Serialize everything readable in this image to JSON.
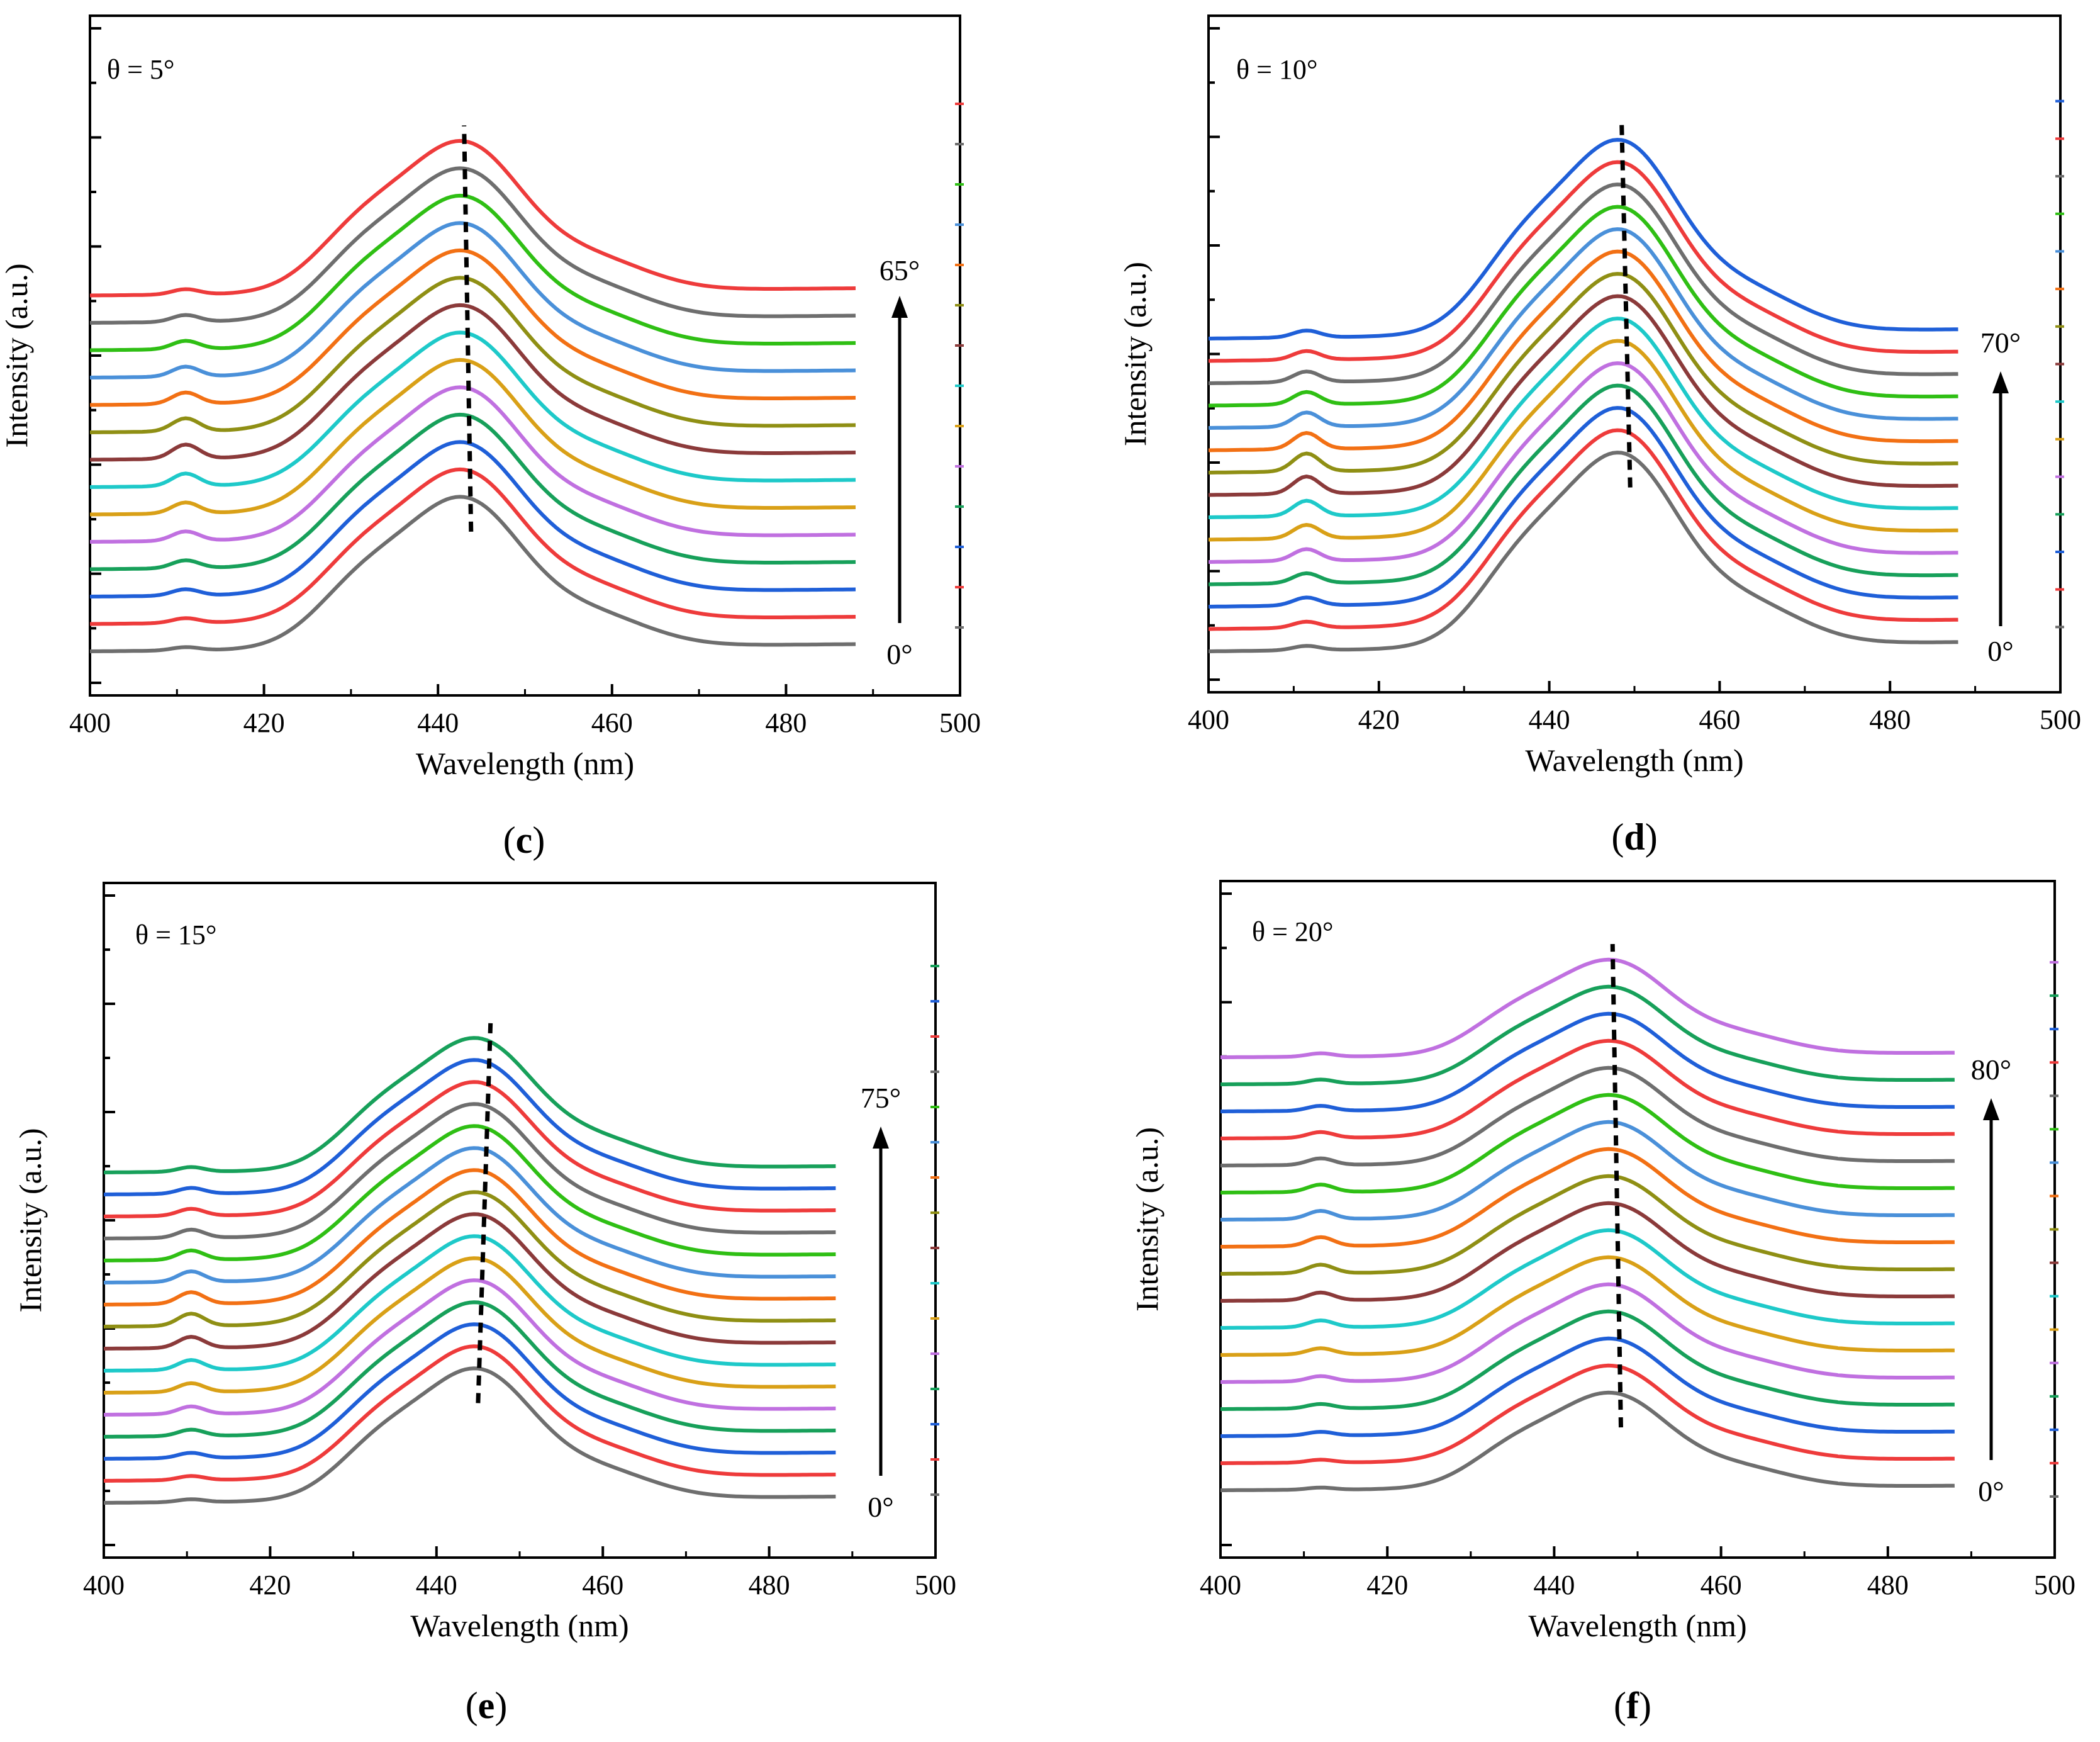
{
  "chart_data": [
    {
      "type": "line",
      "panel": "c",
      "caption": {
        "open": "(",
        "letter": "c",
        "close": ")"
      },
      "title": "θ = 5°",
      "xlabel": "Wavelength (nm)",
      "ylabel": "Intensity (a.u.)",
      "xlim": [
        400,
        500
      ],
      "xticks": [
        "400",
        "420",
        "440",
        "460",
        "480",
        "500"
      ],
      "x_data_range": [
        400,
        488
      ],
      "y_ticks": "unlabeled",
      "angle_range": {
        "start": "0°",
        "end": "65°",
        "direction": "bottom-to-top"
      },
      "series_count": 14,
      "series_colors": [
        "#6e6e6e",
        "#ee3b3b",
        "#1f5fd8",
        "#17a05a",
        "#c070e0",
        "#d9a017",
        "#1ec9c9",
        "#8b3a3a",
        "#8f8f14",
        "#f27014",
        "#4a90d9",
        "#2fbf14",
        "#6e6e6e",
        "#ee3b3b"
      ],
      "peak_wavelength_nm": 443,
      "peak_trend_line": {
        "from": [
          443.8,
          "bottom"
        ],
        "to": [
          443.0,
          "top"
        ],
        "style": "dashed"
      },
      "secondary_peak_nm": 411,
      "note": "Stacked emission spectra; each curve offset vertically; peak near 443 nm"
    },
    {
      "type": "line",
      "panel": "d",
      "caption": {
        "open": "(",
        "letter": "d",
        "close": ")"
      },
      "title": "θ = 10°",
      "xlabel": "Wavelength (nm)",
      "ylabel": "Intensity (a.u.)",
      "xlim": [
        400,
        500
      ],
      "xticks": [
        "400",
        "420",
        "440",
        "460",
        "480",
        "500"
      ],
      "x_data_range": [
        400,
        488
      ],
      "y_ticks": "unlabeled",
      "angle_range": {
        "start": "0°",
        "end": "70°",
        "direction": "bottom-to-top"
      },
      "series_count": 15,
      "series_colors": [
        "#6e6e6e",
        "#ee3b3b",
        "#1f5fd8",
        "#17a05a",
        "#c070e0",
        "#d9a017",
        "#1ec9c9",
        "#8b3a3a",
        "#8f8f14",
        "#f27014",
        "#4a90d9",
        "#2fbf14",
        "#6e6e6e",
        "#ee3b3b",
        "#1f5fd8"
      ],
      "peak_wavelength_nm": 448.5,
      "peak_trend_line": {
        "from": [
          449.5,
          "bottom"
        ],
        "to": [
          448.5,
          "top"
        ],
        "style": "dashed"
      },
      "secondary_peak_nm": 411.5,
      "note": "Stacked emission spectra; peak near 448 nm with shoulder near 437 nm"
    },
    {
      "type": "line",
      "panel": "e",
      "caption": {
        "open": "(",
        "letter": "e",
        "close": ")"
      },
      "title": "θ = 15°",
      "xlabel": "Wavelength (nm)",
      "ylabel": "Intensity (a.u.)",
      "xlim": [
        400,
        500
      ],
      "xticks": [
        "400",
        "420",
        "440",
        "460",
        "480",
        "500"
      ],
      "x_data_range": [
        400,
        488
      ],
      "y_ticks": "unlabeled",
      "angle_range": {
        "start": "0°",
        "end": "75°",
        "direction": "bottom-to-top"
      },
      "series_count": 16,
      "series_colors": [
        "#6e6e6e",
        "#ee3b3b",
        "#1f5fd8",
        "#17a05a",
        "#c070e0",
        "#d9a017",
        "#1ec9c9",
        "#8b3a3a",
        "#8f8f14",
        "#f27014",
        "#4a90d9",
        "#2fbf14",
        "#6e6e6e",
        "#ee3b3b",
        "#1f5fd8",
        "#17a05a"
      ],
      "peak_wavelength_nm": 445,
      "peak_trend_line": {
        "from": [
          445.0,
          "bottom"
        ],
        "to": [
          446.5,
          "top"
        ],
        "style": "dashed"
      },
      "secondary_peak_nm": 410.5,
      "note": "Stacked emission spectra; peak near 445 nm"
    },
    {
      "type": "line",
      "panel": "f",
      "caption": {
        "open": "(",
        "letter": "f",
        "close": ")"
      },
      "title": "θ = 20°",
      "xlabel": "Wavelength (nm)",
      "ylabel": "Intensity (a.u.)",
      "xlim": [
        400,
        500
      ],
      "xticks": [
        "400",
        "420",
        "440",
        "460",
        "480",
        "500"
      ],
      "x_data_range": [
        400,
        488
      ],
      "y_ticks": "unlabeled",
      "angle_range": {
        "start": "0°",
        "end": "80°",
        "direction": "bottom-to-top"
      },
      "series_count": 17,
      "series_colors": [
        "#6e6e6e",
        "#ee3b3b",
        "#1f5fd8",
        "#17a05a",
        "#c070e0",
        "#d9a017",
        "#1ec9c9",
        "#8b3a3a",
        "#8f8f14",
        "#f27014",
        "#4a90d9",
        "#2fbf14",
        "#6e6e6e",
        "#ee3b3b",
        "#1f5fd8",
        "#17a05a",
        "#c070e0"
      ],
      "peak_wavelength_nm": 447,
      "peak_trend_line": {
        "from": [
          448.0,
          "bottom"
        ],
        "to": [
          447.0,
          "top"
        ],
        "style": "dashed"
      },
      "secondary_peak_nm": 412,
      "note": "Stacked emission spectra; broad peak near 447 nm with shoulder near 435 nm"
    }
  ]
}
